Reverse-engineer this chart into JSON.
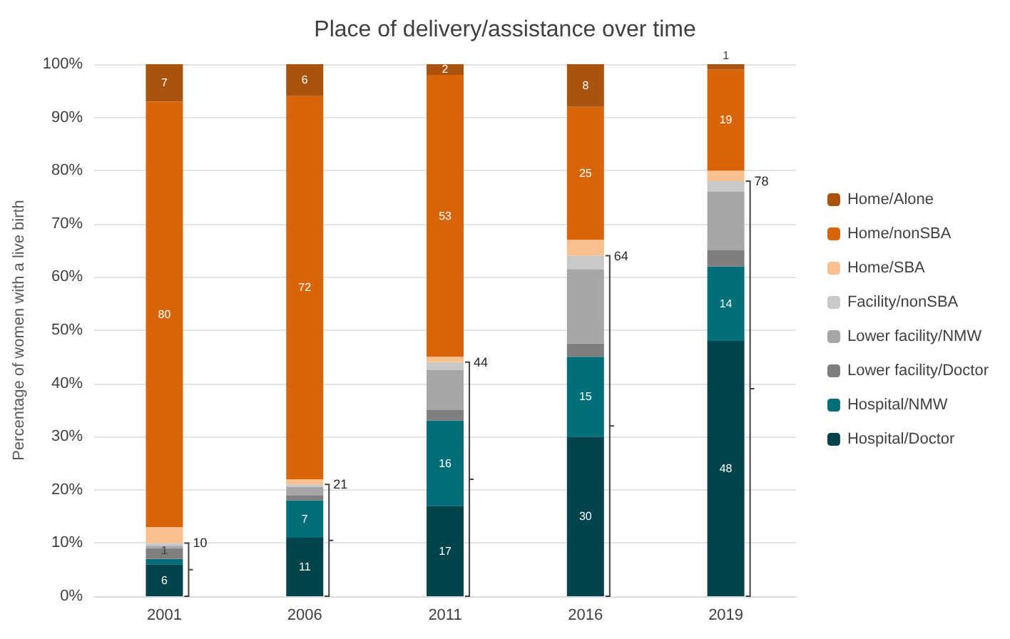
{
  "chart_data": {
    "type": "bar",
    "stacked": true,
    "title": "Place of delivery/assistance over time",
    "ylabel": "Percentage of women with a live birth",
    "categories": [
      "2001",
      "2006",
      "2011",
      "2016",
      "2019"
    ],
    "series": [
      {
        "name": "Hospital/Doctor",
        "color": "#03444c",
        "values": [
          6,
          11,
          17,
          30,
          48
        ],
        "value_labels": [
          "6",
          "11",
          "17",
          "30",
          "48"
        ]
      },
      {
        "name": "Hospital/NMW",
        "color": "#006f7a",
        "values": [
          1,
          7,
          16,
          15,
          14
        ],
        "value_labels": [
          "1",
          "7",
          "16",
          "15",
          "14"
        ]
      },
      {
        "name": "Lower facility/Doctor",
        "color": "#7f7f7f",
        "values": [
          2,
          1,
          2,
          2.5,
          3
        ]
      },
      {
        "name": "Lower facility/NMW",
        "color": "#a6a6a6",
        "values": [
          0.5,
          1.5,
          7.5,
          14,
          11
        ]
      },
      {
        "name": "Facility/nonSBA",
        "color": "#c9c9c9",
        "values": [
          0.5,
          0.5,
          1.5,
          2.5,
          2
        ]
      },
      {
        "name": "Home/SBA",
        "color": "#f8c08f",
        "values": [
          3,
          1,
          1,
          3,
          2
        ]
      },
      {
        "name": "Home/nonSBA",
        "color": "#d9650a",
        "values": [
          80,
          72,
          53,
          25,
          19
        ],
        "value_labels": [
          "80",
          "72",
          "53",
          "25",
          "19"
        ]
      },
      {
        "name": "Home/Alone",
        "color": "#a9530e",
        "values": [
          7,
          6,
          2,
          8,
          1
        ],
        "value_labels": [
          "7",
          "6",
          "2",
          "8",
          "1"
        ]
      }
    ],
    "ylim": [
      0,
      100
    ],
    "yticks": [
      {
        "value": 0,
        "label": "0%"
      },
      {
        "value": 10,
        "label": "10%"
      },
      {
        "value": 20,
        "label": "20%"
      },
      {
        "value": 30,
        "label": "30%"
      },
      {
        "value": 40,
        "label": "40%"
      },
      {
        "value": 50,
        "label": "50%"
      },
      {
        "value": 60,
        "label": "60%"
      },
      {
        "value": 70,
        "label": "70%"
      },
      {
        "value": 80,
        "label": "80%"
      },
      {
        "value": 90,
        "label": "90%"
      },
      {
        "value": 100,
        "label": "100%"
      }
    ],
    "grid": "y",
    "legend": "right",
    "annotations": [
      {
        "text": "10",
        "x": "2001",
        "y": 10
      },
      {
        "text": "21",
        "x": "2006",
        "y": 21
      },
      {
        "text": "44",
        "x": "2011",
        "y": 44
      },
      {
        "text": "64",
        "x": "2016",
        "y": 64
      },
      {
        "text": "78",
        "x": "2019",
        "y": 78
      }
    ]
  }
}
